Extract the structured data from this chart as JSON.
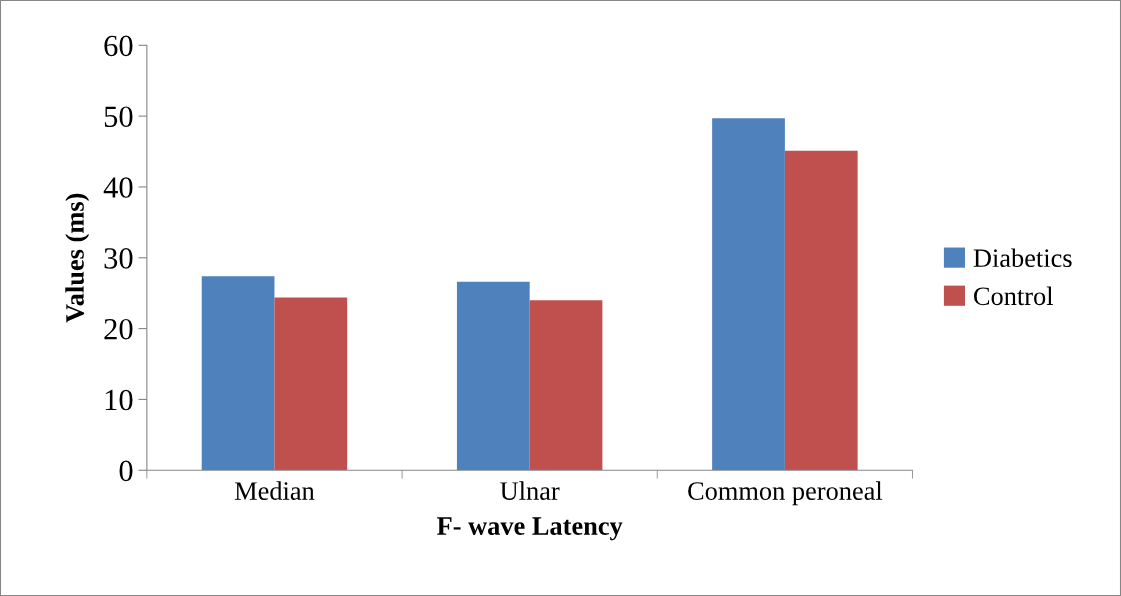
{
  "chart_data": {
    "type": "bar",
    "xlabel": "F- wave Latency",
    "ylabel": "Values (ms)",
    "categories": [
      "Median",
      "Ulnar",
      "Common peroneal"
    ],
    "series": [
      {
        "name": "Diabetics",
        "color": "#4f81bd",
        "values": [
          27.4,
          26.6,
          49.7
        ]
      },
      {
        "name": "Control",
        "color": "#c0504d",
        "values": [
          24.4,
          24.0,
          45.1
        ]
      }
    ],
    "ylim": [
      0,
      60
    ],
    "yticks": [
      0,
      10,
      20,
      30,
      40,
      50,
      60
    ],
    "grid": false,
    "legend": "right"
  }
}
